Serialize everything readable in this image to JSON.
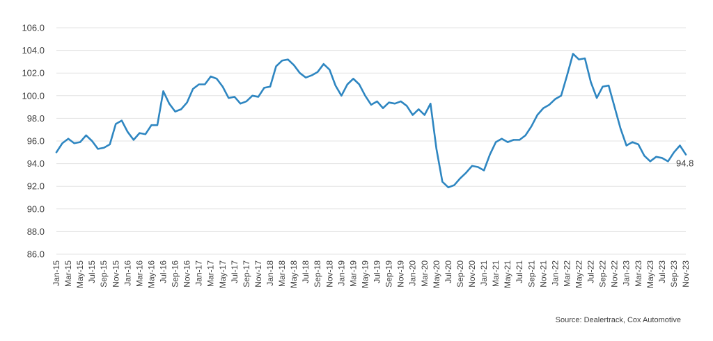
{
  "chart_data": {
    "type": "line",
    "title": "",
    "xlabel": "",
    "ylabel": "",
    "ylim": [
      86,
      106
    ],
    "yticks": [
      "86.0",
      "88.0",
      "90.0",
      "92.0",
      "94.0",
      "96.0",
      "98.0",
      "100.0",
      "102.0",
      "104.0",
      "106.0"
    ],
    "grid": true,
    "legend": "none",
    "x_start": "Jan-15",
    "x_end": "Nov-23",
    "xtick_labels": [
      "Jan-15",
      "Mar-15",
      "May-15",
      "Jul-15",
      "Sep-15",
      "Nov-15",
      "Jan-16",
      "Mar-16",
      "May-16",
      "Jul-16",
      "Sep-16",
      "Nov-16",
      "Jan-17",
      "Mar-17",
      "May-17",
      "Jul-17",
      "Sep-17",
      "Nov-17",
      "Jan-18",
      "Mar-18",
      "May-18",
      "Jul-18",
      "Sep-18",
      "Nov-18",
      "Jan-19",
      "Mar-19",
      "May-19",
      "Jul-19",
      "Sep-19",
      "Nov-19",
      "Jan-20",
      "Mar-20",
      "May-20",
      "Jul-20",
      "Sep-20",
      "Nov-20",
      "Jan-21",
      "Mar-21",
      "May-21",
      "Jul-21",
      "Sep-21",
      "Nov-21",
      "Jan-22",
      "Mar-22",
      "May-22",
      "Jul-22",
      "Sep-22",
      "Nov-22",
      "Jan-23",
      "Mar-23",
      "May-23",
      "Jul-23",
      "Sep-23",
      "Nov-23"
    ],
    "series": [
      {
        "color": "#2e86c1",
        "values": [
          95.0,
          95.8,
          96.2,
          95.8,
          95.9,
          96.5,
          96.0,
          95.3,
          95.4,
          95.7,
          97.5,
          97.8,
          96.8,
          96.1,
          96.7,
          96.6,
          97.4,
          97.4,
          100.4,
          99.3,
          98.6,
          98.8,
          99.4,
          100.6,
          101.0,
          101.0,
          101.7,
          101.5,
          100.8,
          99.8,
          99.9,
          99.3,
          99.5,
          100.0,
          99.9,
          100.7,
          100.8,
          102.6,
          103.1,
          103.2,
          102.7,
          102.0,
          101.6,
          101.8,
          102.1,
          102.8,
          102.3,
          100.9,
          100.0,
          101.0,
          101.5,
          101.0,
          100.0,
          99.2,
          99.5,
          98.9,
          99.4,
          99.3,
          99.5,
          99.1,
          98.3,
          98.8,
          98.3,
          99.3,
          95.3,
          92.4,
          91.9,
          92.1,
          92.7,
          93.2,
          93.8,
          93.7,
          93.4,
          94.8,
          95.9,
          96.2,
          95.9,
          96.1,
          96.1,
          96.5,
          97.3,
          98.3,
          98.9,
          99.2,
          99.7,
          100.0,
          101.8,
          103.7,
          103.2,
          103.3,
          101.2,
          99.8,
          100.8,
          100.9,
          99.0,
          97.1,
          95.6,
          95.9,
          95.7,
          94.7,
          94.2,
          94.6,
          94.5,
          94.2,
          95.0,
          95.6,
          94.8
        ]
      }
    ],
    "end_label": "94.8",
    "source": "Source: Dealertrack, Cox Automotive"
  }
}
